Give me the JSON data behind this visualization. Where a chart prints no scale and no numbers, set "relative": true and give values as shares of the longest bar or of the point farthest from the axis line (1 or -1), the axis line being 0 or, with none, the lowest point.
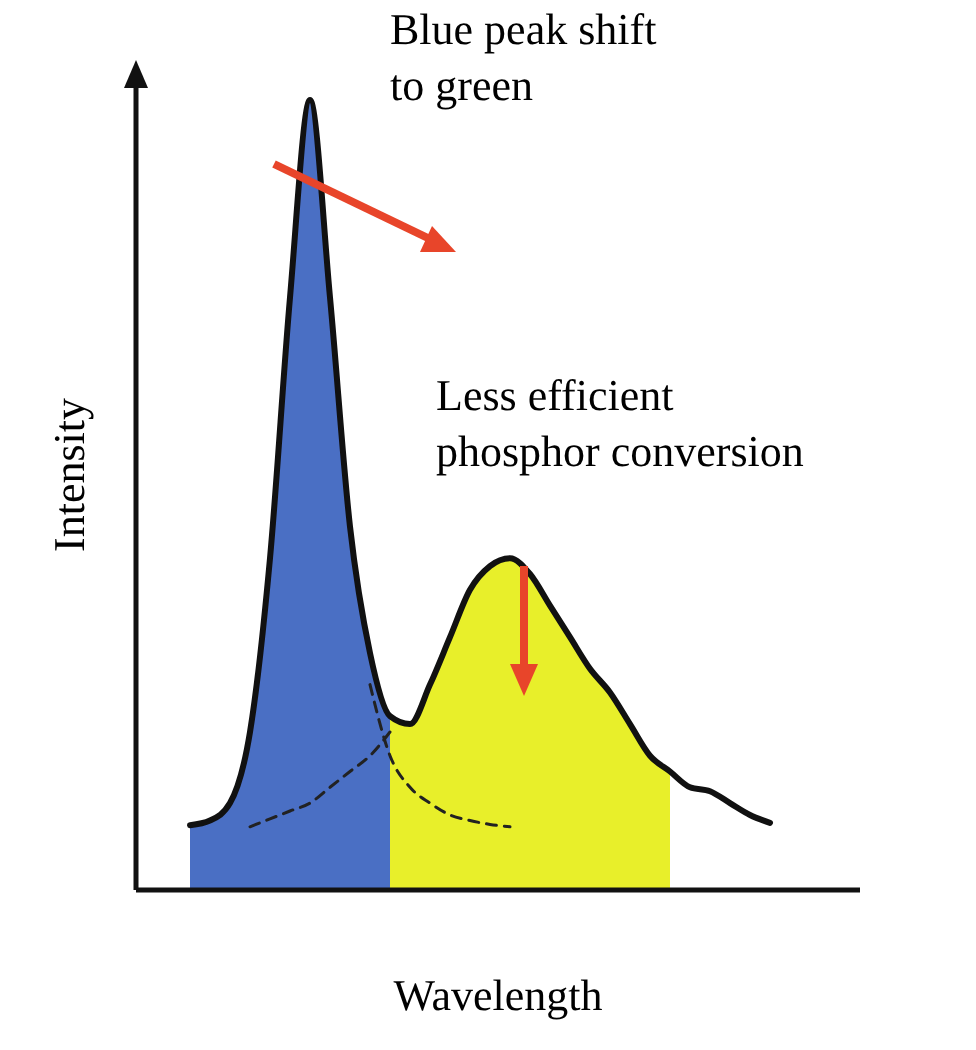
{
  "chart_data": {
    "type": "area",
    "relative": true,
    "xlabel": "Wavelength",
    "ylabel": "Intensity",
    "categories": [
      null,
      null,
      null,
      null,
      null,
      null,
      null,
      null,
      null,
      null,
      null,
      null,
      null,
      null,
      null,
      null,
      null,
      null,
      null,
      null,
      null,
      null,
      null,
      null,
      null,
      null,
      null,
      null,
      null,
      null
    ],
    "annotations": [
      "Blue peak shift\nto green",
      "Less efficient\nphosphor conversion"
    ],
    "series": [
      {
        "color": "#4a6fc4",
        "values": [
          0.082,
          0.088,
          0.11,
          0.2,
          0.42,
          0.75,
          1.0,
          0.75,
          0.46,
          0.3,
          0.22,
          null,
          null,
          null,
          null,
          null,
          null,
          null,
          null,
          null,
          null,
          null,
          null,
          null,
          null,
          null,
          null,
          null,
          null,
          null
        ]
      },
      {
        "color": "#e8ef2a",
        "values": [
          null,
          null,
          null,
          null,
          null,
          null,
          null,
          null,
          null,
          null,
          0.22,
          0.21,
          0.26,
          0.32,
          0.38,
          0.41,
          0.42,
          0.4,
          0.36,
          0.32,
          0.28,
          0.25,
          0.21,
          0.17,
          0.15,
          null,
          null,
          null,
          null,
          null
        ]
      },
      {
        "type": "line",
        "color": "#222222",
        "line_style": "dashed",
        "values": [
          null,
          null,
          null,
          0.08,
          0.09,
          0.1,
          0.11,
          0.13,
          0.15,
          0.17,
          0.2,
          null,
          null,
          null,
          null,
          null,
          null,
          null,
          null,
          null,
          null,
          null,
          null,
          null,
          null,
          null,
          null,
          null,
          null,
          null
        ]
      },
      {
        "type": "line",
        "color": "#222222",
        "line_style": "dashed",
        "values": [
          null,
          null,
          null,
          null,
          null,
          null,
          null,
          null,
          null,
          0.26,
          0.17,
          0.13,
          0.11,
          0.095,
          0.088,
          0.083,
          0.08,
          null,
          null,
          null,
          null,
          null,
          null,
          null,
          null,
          null,
          null,
          null,
          null,
          null
        ]
      },
      {
        "type": "line",
        "color": "#111111",
        "values": [
          0.082,
          0.088,
          0.11,
          0.2,
          0.42,
          0.75,
          1.0,
          0.75,
          0.46,
          0.3,
          0.22,
          0.21,
          0.26,
          0.32,
          0.38,
          0.41,
          0.42,
          0.4,
          0.36,
          0.32,
          0.28,
          0.25,
          0.21,
          0.17,
          0.15,
          0.13,
          0.125,
          0.11,
          0.095,
          0.085
        ]
      }
    ]
  }
}
